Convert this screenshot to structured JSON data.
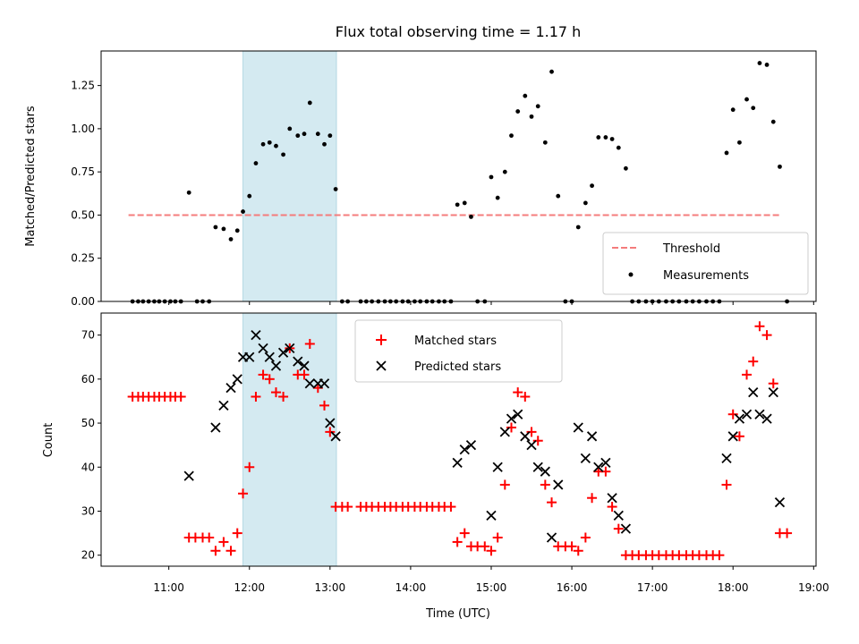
{
  "chart_data": [
    {
      "panel": "top",
      "type": "scatter",
      "title": "Flux total observing time = 1.17 h",
      "xlabel": "",
      "ylabel": "Matched/Predicted stars",
      "ylim": [
        0,
        1.45
      ],
      "yticks": [
        0,
        0.25,
        0.5,
        0.75,
        1.0,
        1.25
      ],
      "ytick_labels": [
        "0.00",
        "0.25",
        "0.50",
        "0.75",
        "1.00",
        "1.25"
      ],
      "highlight_span": {
        "start_h": 11.92,
        "end_h": 13.08,
        "color": "#d4eaf1"
      },
      "threshold": {
        "name": "Threshold",
        "value": 0.5,
        "x_start_h": 10.5,
        "x_end_h": 18.6,
        "color": "#f47c7c"
      },
      "legend": {
        "placement": "lower-right",
        "entries": [
          "Threshold",
          "Measurements"
        ]
      },
      "series": [
        {
          "name": "Measurements",
          "color": "#000000",
          "x": [
            10.55,
            10.62,
            10.68,
            10.75,
            10.82,
            10.88,
            10.95,
            11.02,
            11.08,
            11.15,
            11.25,
            11.35,
            11.42,
            11.5,
            11.58,
            11.68,
            11.77,
            11.85,
            11.92,
            12.0,
            12.08,
            12.17,
            12.25,
            12.33,
            12.42,
            12.5,
            12.6,
            12.68,
            12.75,
            12.85,
            12.93,
            13.0,
            13.07,
            13.15,
            13.22,
            13.38,
            13.45,
            13.52,
            13.6,
            13.68,
            13.75,
            13.82,
            13.9,
            13.97,
            14.05,
            14.12,
            14.2,
            14.27,
            14.35,
            14.42,
            14.5,
            14.58,
            14.67,
            14.75,
            14.83,
            14.92,
            15.0,
            15.08,
            15.17,
            15.25,
            15.33,
            15.42,
            15.5,
            15.58,
            15.67,
            15.75,
            15.83,
            15.92,
            16.0,
            16.08,
            16.17,
            16.25,
            16.33,
            16.42,
            16.5,
            16.58,
            16.67,
            16.75,
            16.83,
            16.92,
            17.0,
            17.08,
            17.17,
            17.25,
            17.33,
            17.42,
            17.5,
            17.58,
            17.67,
            17.75,
            17.83,
            17.92,
            18.0,
            18.08,
            18.17,
            18.25,
            18.33,
            18.42,
            18.5,
            18.58,
            18.67
          ],
          "y": [
            0,
            0,
            0,
            0,
            0,
            0,
            0,
            0,
            0,
            0,
            0.63,
            0,
            0,
            0,
            0.43,
            0.42,
            0.36,
            0.41,
            0.52,
            0.61,
            0.8,
            0.91,
            0.92,
            0.9,
            0.85,
            1.0,
            0.96,
            0.97,
            1.15,
            0.97,
            0.91,
            0.96,
            0.65,
            0,
            0,
            0,
            0,
            0,
            0,
            0,
            0,
            0,
            0,
            0,
            0,
            0,
            0,
            0,
            0,
            0,
            0,
            0.56,
            0.57,
            0.49,
            0,
            0,
            0.72,
            0.6,
            0.75,
            0.96,
            1.1,
            1.19,
            1.07,
            1.13,
            0.92,
            1.33,
            0.61,
            0,
            0,
            0.43,
            0.57,
            0.67,
            0.95,
            0.95,
            0.94,
            0.89,
            0.77,
            0,
            0,
            0,
            0,
            0,
            0,
            0,
            0,
            0,
            0,
            0,
            0,
            0,
            0,
            0.86,
            1.11,
            0.92,
            1.17,
            1.12,
            1.38,
            1.37,
            1.04,
            0.78,
            0
          ]
        }
      ]
    },
    {
      "panel": "bottom",
      "type": "scatter",
      "title": "",
      "xlabel": "Time (UTC)",
      "ylabel": "Count",
      "ylim": [
        17.5,
        75
      ],
      "yticks": [
        20,
        30,
        40,
        50,
        60,
        70
      ],
      "ytick_labels": [
        "20",
        "30",
        "40",
        "50",
        "60",
        "70"
      ],
      "xlim": [
        10.16,
        19.03
      ],
      "xticks": [
        11,
        12,
        13,
        14,
        15,
        16,
        17,
        18,
        19
      ],
      "xtick_labels": [
        "11:00",
        "12:00",
        "13:00",
        "14:00",
        "15:00",
        "16:00",
        "17:00",
        "18:00",
        "19:00"
      ],
      "highlight_span": {
        "start_h": 11.92,
        "end_h": 13.08,
        "color": "#d4eaf1"
      },
      "legend": {
        "placement": "upper-center",
        "entries": [
          "Matched stars",
          "Predicted stars"
        ]
      },
      "series": [
        {
          "name": "Matched stars",
          "marker": "plus",
          "color": "#ff0000",
          "x": [
            10.55,
            10.62,
            10.68,
            10.75,
            10.82,
            10.88,
            10.95,
            11.02,
            11.08,
            11.15,
            11.25,
            11.33,
            11.42,
            11.5,
            11.58,
            11.68,
            11.77,
            11.85,
            11.92,
            12.0,
            12.08,
            12.17,
            12.25,
            12.33,
            12.42,
            12.5,
            12.6,
            12.68,
            12.75,
            12.85,
            12.93,
            13.0,
            13.07,
            13.15,
            13.22,
            13.38,
            13.45,
            13.52,
            13.6,
            13.68,
            13.75,
            13.82,
            13.9,
            13.97,
            14.05,
            14.12,
            14.2,
            14.27,
            14.35,
            14.42,
            14.5,
            14.58,
            14.67,
            14.75,
            14.83,
            14.92,
            15.0,
            15.08,
            15.17,
            15.25,
            15.33,
            15.42,
            15.5,
            15.58,
            15.67,
            15.75,
            15.83,
            15.92,
            16.0,
            16.08,
            16.17,
            16.25,
            16.33,
            16.42,
            16.5,
            16.58,
            16.67,
            16.75,
            16.83,
            16.92,
            17.0,
            17.08,
            17.17,
            17.25,
            17.33,
            17.42,
            17.5,
            17.58,
            17.67,
            17.75,
            17.83,
            17.92,
            18.0,
            18.08,
            18.17,
            18.25,
            18.33,
            18.42,
            18.5,
            18.58,
            18.67
          ],
          "y": [
            56,
            56,
            56,
            56,
            56,
            56,
            56,
            56,
            56,
            56,
            24,
            24,
            24,
            24,
            21,
            23,
            21,
            25,
            34,
            40,
            56,
            61,
            60,
            57,
            56,
            67,
            61,
            61,
            68,
            58,
            54,
            48,
            31,
            31,
            31,
            31,
            31,
            31,
            31,
            31,
            31,
            31,
            31,
            31,
            31,
            31,
            31,
            31,
            31,
            31,
            31,
            23,
            25,
            22,
            22,
            22,
            21,
            24,
            36,
            49,
            57,
            56,
            48,
            46,
            36,
            32,
            22,
            22,
            22,
            21,
            24,
            33,
            39,
            39,
            31,
            26,
            20,
            20,
            20,
            20,
            20,
            20,
            20,
            20,
            20,
            20,
            20,
            20,
            20,
            20,
            20,
            36,
            52,
            47,
            61,
            64,
            72,
            70,
            59,
            25,
            25
          ]
        },
        {
          "name": "Predicted stars",
          "marker": "x",
          "color": "#000000",
          "x": [
            11.25,
            11.58,
            11.68,
            11.77,
            11.85,
            11.92,
            12.0,
            12.08,
            12.17,
            12.25,
            12.33,
            12.42,
            12.5,
            12.6,
            12.68,
            12.75,
            12.85,
            12.93,
            13.0,
            13.07,
            14.58,
            14.67,
            14.75,
            15.0,
            15.08,
            15.17,
            15.25,
            15.33,
            15.42,
            15.5,
            15.58,
            15.67,
            15.75,
            15.83,
            16.08,
            16.17,
            16.25,
            16.33,
            16.42,
            16.5,
            16.58,
            16.67,
            17.92,
            18.0,
            18.08,
            18.17,
            18.25,
            18.33,
            18.42,
            18.5,
            18.58
          ],
          "y": [
            38,
            49,
            54,
            58,
            60,
            65,
            65,
            70,
            67,
            65,
            63,
            66,
            67,
            64,
            63,
            59,
            59,
            59,
            50,
            47,
            41,
            44,
            45,
            29,
            40,
            48,
            51,
            52,
            47,
            45,
            40,
            39,
            24,
            36,
            49,
            42,
            47,
            40,
            41,
            33,
            29,
            26,
            42,
            47,
            51,
            52,
            57,
            52,
            51,
            57,
            32
          ]
        }
      ]
    }
  ]
}
